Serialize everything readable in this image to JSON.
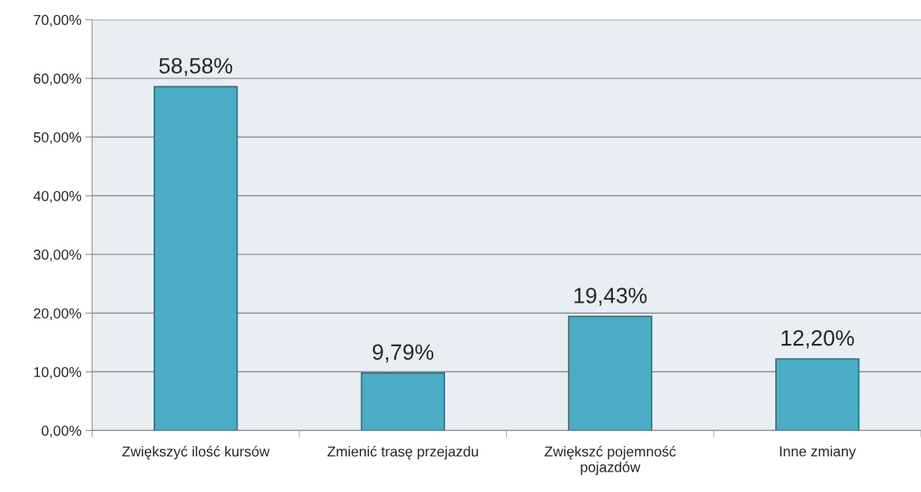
{
  "chart_data": {
    "type": "bar",
    "categories": [
      "Zwiększyć ilość kursów",
      "Zmienić trasę przejazdu",
      "Zwiększć pojemność\npojazdów",
      "Inne zmiany"
    ],
    "values": [
      58.58,
      9.79,
      19.43,
      12.2
    ],
    "value_labels": [
      "58,58%",
      "9,79%",
      "19,43%",
      "12,20%"
    ],
    "color": "#4bacc6",
    "ylim": [
      0,
      70
    ],
    "yticks": [
      {
        "value": 0,
        "label": "0,00%"
      },
      {
        "value": 10,
        "label": "10,00%"
      },
      {
        "value": 20,
        "label": "20,00%"
      },
      {
        "value": 30,
        "label": "30,00%"
      },
      {
        "value": 40,
        "label": "40,00%"
      },
      {
        "value": 50,
        "label": "50,00%"
      },
      {
        "value": 60,
        "label": "60,00%"
      },
      {
        "value": 70,
        "label": "70,00%"
      }
    ],
    "grid": "y"
  }
}
